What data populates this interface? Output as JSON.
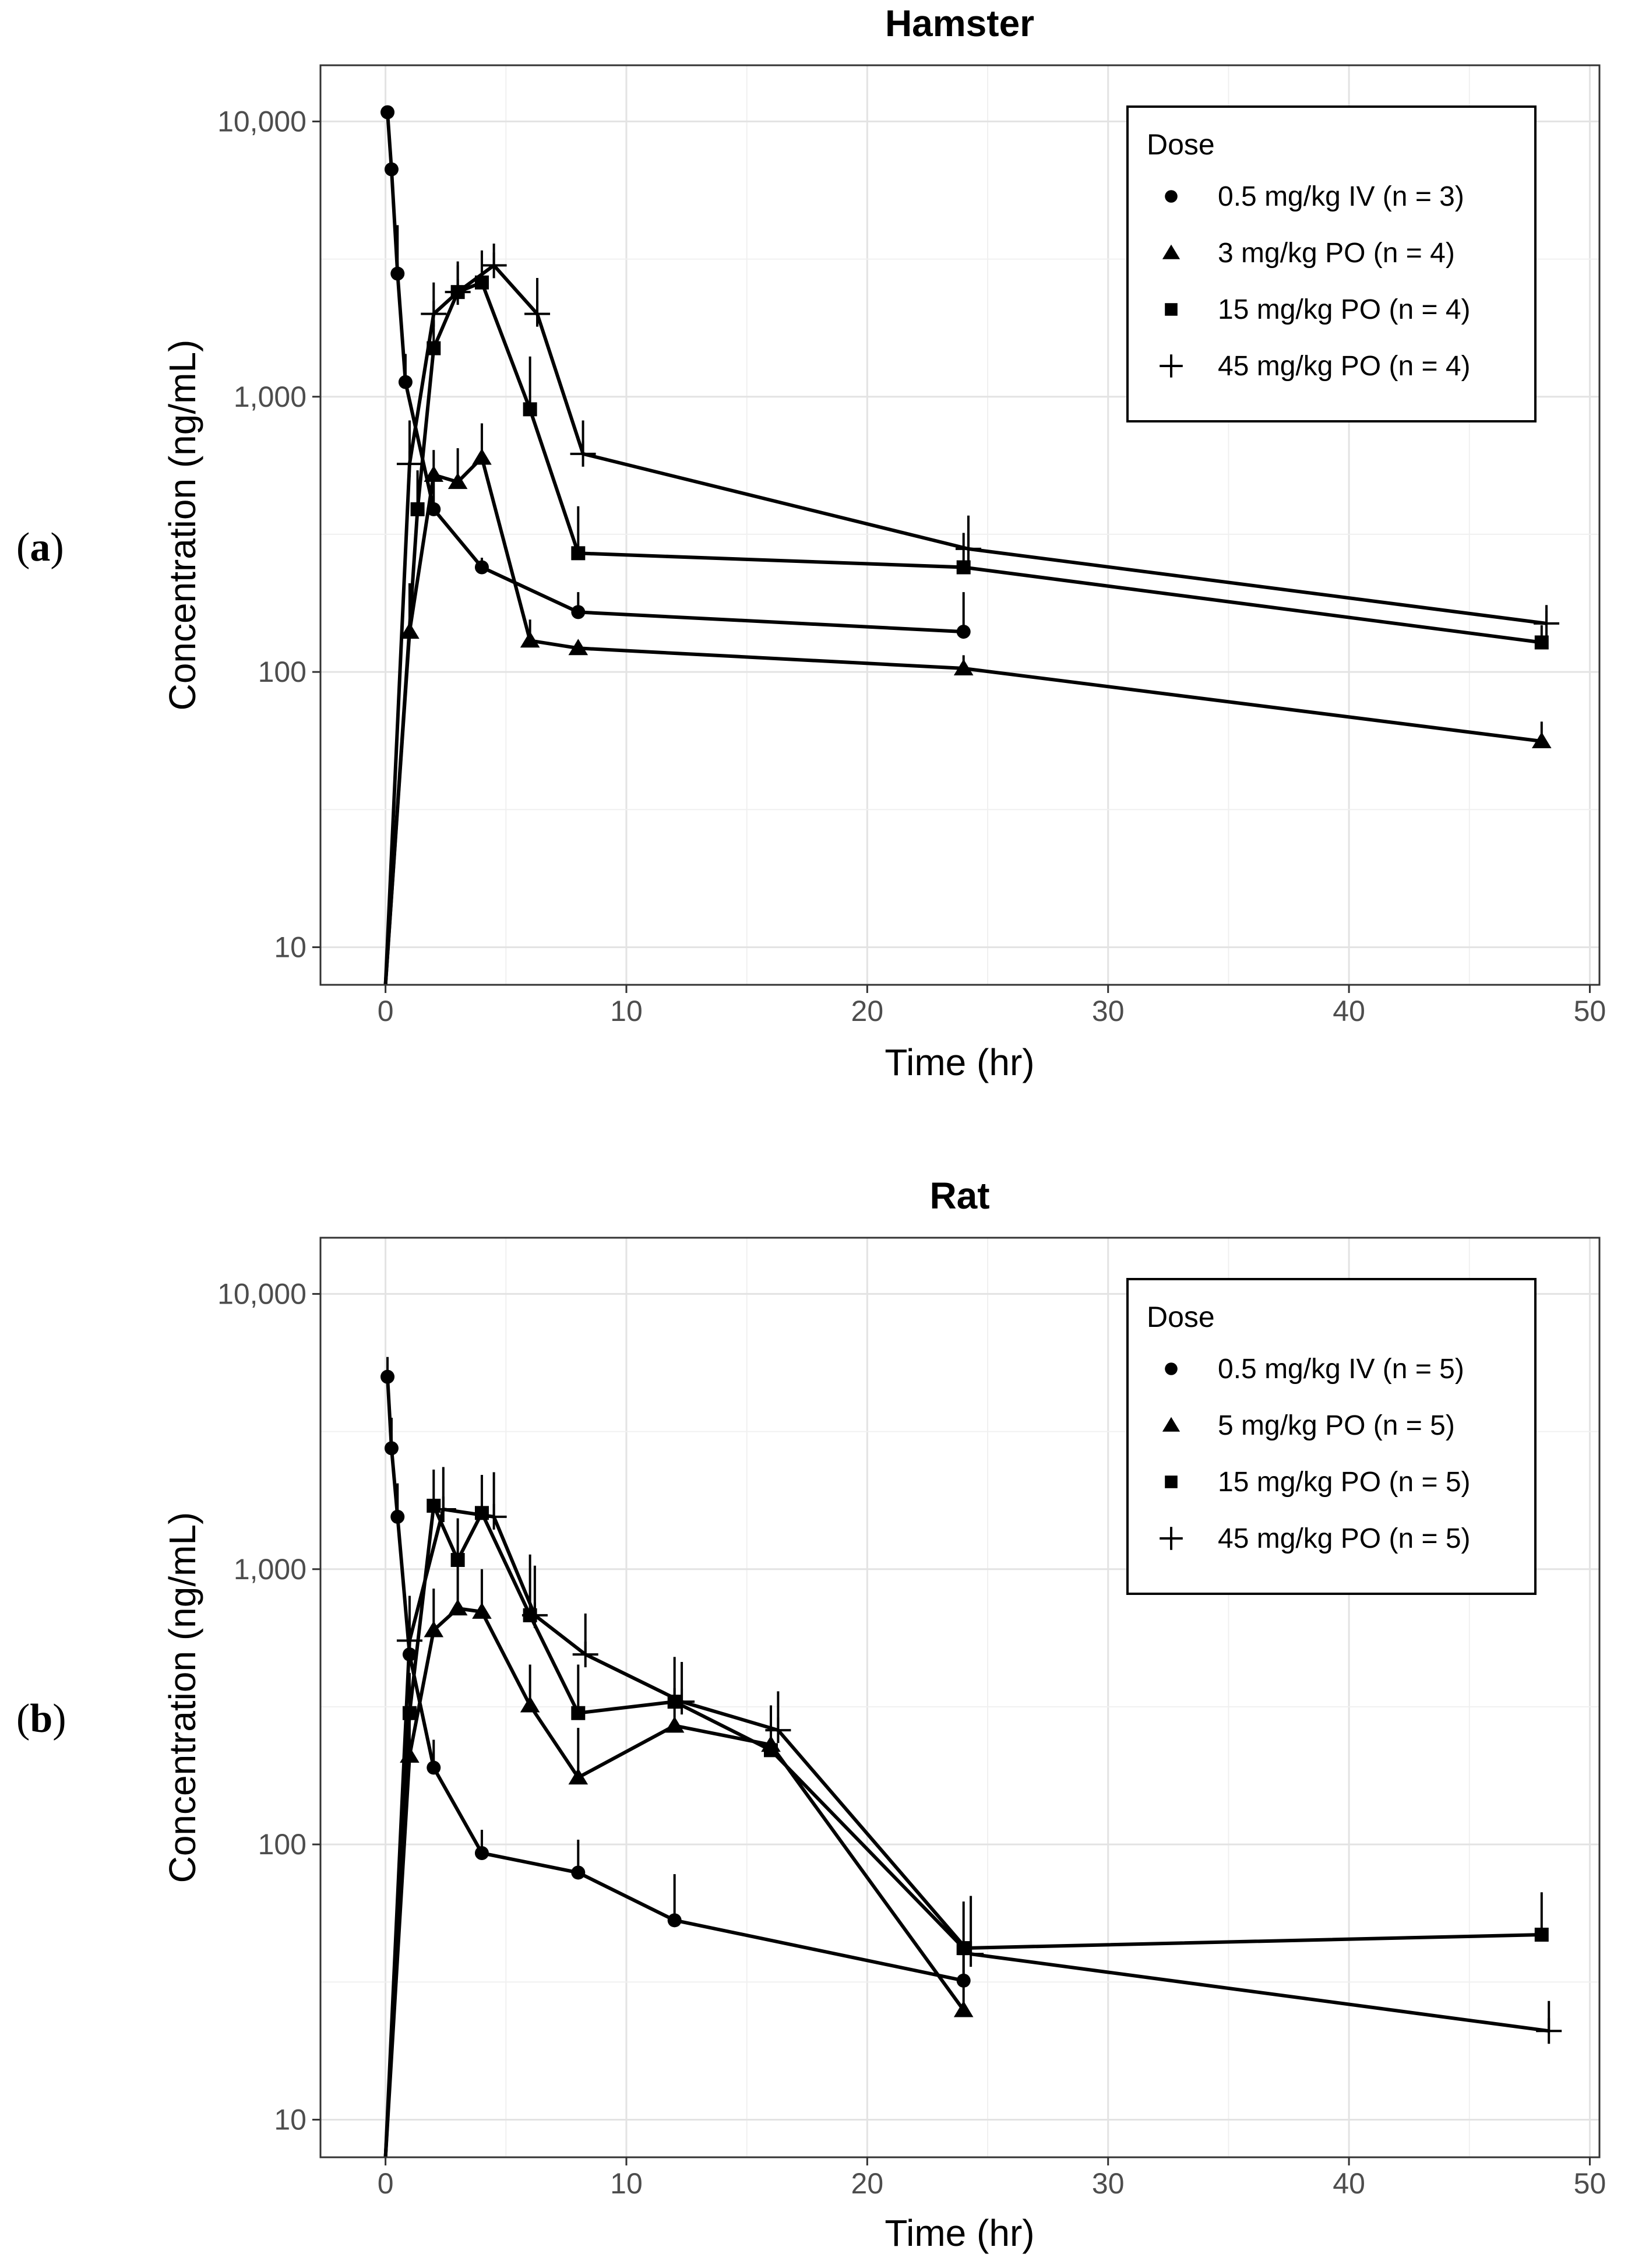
{
  "chart_data": [
    {
      "type": "line",
      "panel_label": "a",
      "title": "Hamster",
      "xlabel": "Time (hr)",
      "ylabel": "Concentration (ng/mL)",
      "yscale": "log",
      "xlim": [
        -2.7,
        50.4
      ],
      "ylim": [
        7.3,
        16000
      ],
      "xticks": [
        0,
        10,
        20,
        30,
        40,
        50
      ],
      "xtick_labels": [
        "0",
        "10",
        "20",
        "30",
        "40",
        "50"
      ],
      "yticks": [
        10,
        100,
        1000,
        10000
      ],
      "ytick_labels": [
        "10",
        "100",
        "1,000",
        "10,000"
      ],
      "legend_title": "Dose",
      "legend_position": "top-right",
      "series": [
        {
          "name": "0.5 mg/kg IV (n = 3)",
          "marker": "circle",
          "x": [
            0.083,
            0.25,
            0.5,
            0.83,
            2,
            4,
            8,
            24
          ],
          "y": [
            10800,
            6700,
            2800,
            1130,
            390,
            240,
            165,
            140
          ],
          "err": [
            null,
            null,
            1400,
            300,
            110,
            20,
            30,
            55
          ]
        },
        {
          "name": "3 mg/kg PO (n = 4)",
          "marker": "triangle",
          "x": [
            0,
            1,
            2,
            3,
            4,
            6,
            8,
            24,
            48
          ],
          "y": [
            7,
            140,
            520,
            490,
            600,
            130,
            122,
            103,
            56
          ],
          "err": [
            null,
            70,
            120,
            160,
            200,
            25,
            8,
            12,
            10
          ]
        },
        {
          "name": "15 mg/kg PO (n = 4)",
          "marker": "square",
          "x": [
            0,
            1.33,
            2,
            3,
            4,
            6,
            8,
            24,
            48
          ],
          "y": [
            7,
            390,
            1500,
            2400,
            2600,
            900,
            270,
            240,
            128
          ],
          "err": [
            null,
            150,
            400,
            700,
            800,
            500,
            130,
            80,
            20
          ]
        },
        {
          "name": "45 mg/kg PO (n = 4)",
          "marker": "plus",
          "x": [
            0,
            1,
            2,
            3,
            4.5,
            6.3,
            8.2,
            24.2,
            48.2
          ],
          "y": [
            7,
            570,
            2000,
            2400,
            3000,
            2000,
            620,
            280,
            150
          ],
          "err": [
            null,
            250,
            600,
            600,
            600,
            700,
            200,
            90,
            25
          ]
        }
      ]
    },
    {
      "type": "line",
      "panel_label": "b",
      "title": "Rat",
      "xlabel": "Time (hr)",
      "ylabel": "Concentration (ng/mL)",
      "yscale": "log",
      "xlim": [
        -2.7,
        50.4
      ],
      "ylim": [
        7.3,
        16000
      ],
      "xticks": [
        0,
        10,
        20,
        30,
        40,
        50
      ],
      "xtick_labels": [
        "0",
        "10",
        "20",
        "30",
        "40",
        "50"
      ],
      "yticks": [
        10,
        100,
        1000,
        10000
      ],
      "ytick_labels": [
        "10",
        "100",
        "1,000",
        "10,000"
      ],
      "legend_title": "Dose",
      "legend_position": "top-right",
      "series": [
        {
          "name": "0.5 mg/kg IV (n = 5)",
          "marker": "circle",
          "x": [
            0.083,
            0.25,
            0.5,
            1,
            2,
            4,
            8,
            12,
            24
          ],
          "y": [
            5000,
            2750,
            1550,
            490,
            190,
            93,
            79,
            53,
            32
          ],
          "err": [
            900,
            800,
            500,
            150,
            50,
            20,
            25,
            25,
            8
          ]
        },
        {
          "name": "5 mg/kg PO (n = 5)",
          "marker": "triangle",
          "x": [
            0,
            1,
            2,
            3,
            4,
            6,
            8,
            12,
            16,
            24
          ],
          "y": [
            7,
            210,
            600,
            720,
            700,
            320,
            175,
            270,
            230,
            25
          ],
          "err": [
            null,
            90,
            250,
            300,
            300,
            130,
            90,
            100,
            80,
            15
          ]
        },
        {
          "name": "15 mg/kg PO (n = 5)",
          "marker": "square",
          "x": [
            0,
            1,
            2,
            3,
            4,
            6,
            8,
            12,
            16,
            24,
            48
          ],
          "y": [
            7,
            300,
            1700,
            1080,
            1600,
            680,
            300,
            330,
            220,
            42,
            47
          ],
          "err": [
            null,
            120,
            600,
            450,
            600,
            450,
            150,
            150,
            100,
            20,
            20
          ]
        },
        {
          "name": "45 mg/kg PO (n = 5)",
          "marker": "plus",
          "x": [
            0,
            1,
            2.4,
            4.5,
            6.2,
            8.3,
            12.3,
            16.3,
            24.3,
            48.3
          ],
          "y": [
            7,
            550,
            1650,
            1550,
            680,
            490,
            330,
            260,
            40,
            21
          ],
          "err": [
            null,
            250,
            700,
            700,
            350,
            200,
            130,
            100,
            25,
            6
          ]
        }
      ]
    }
  ]
}
